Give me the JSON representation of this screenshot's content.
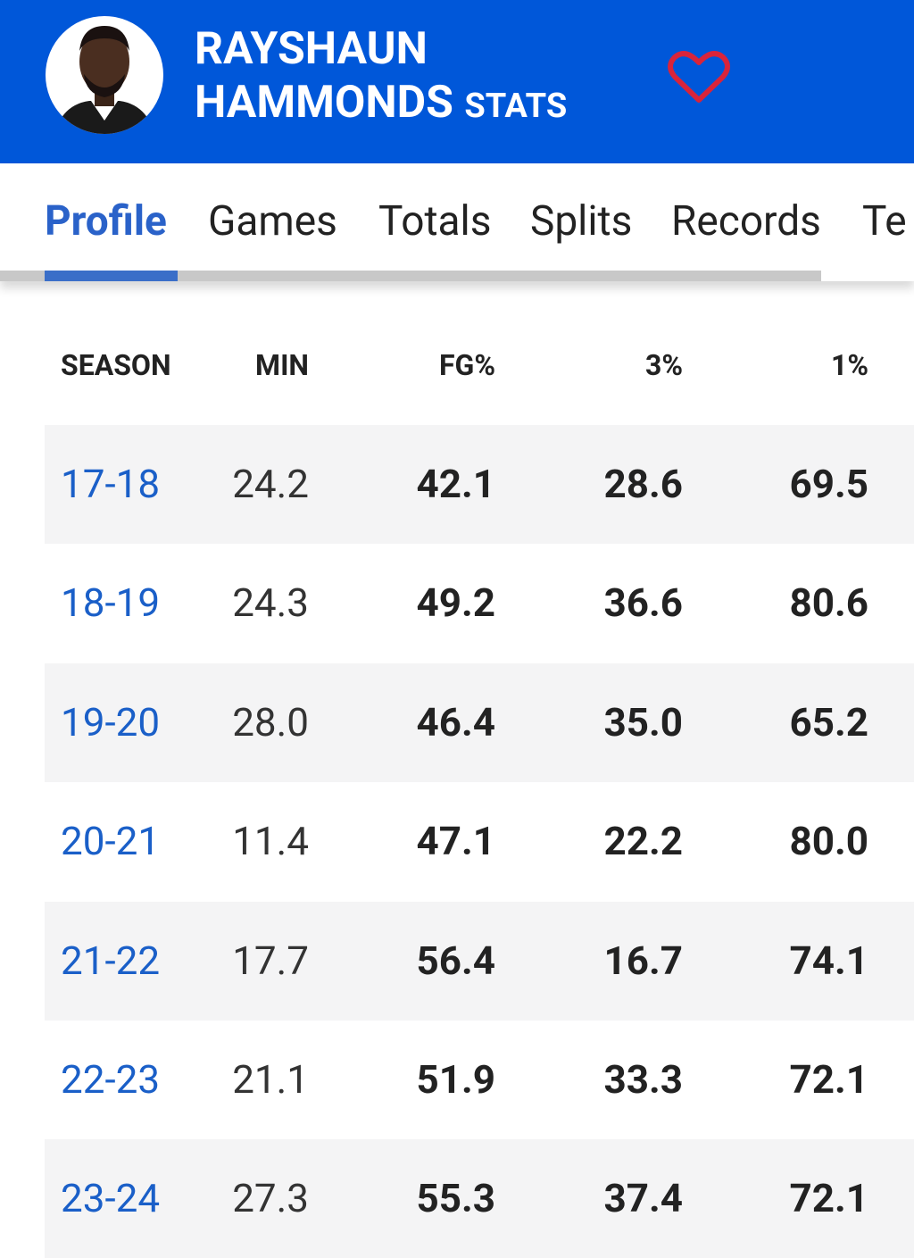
{
  "header": {
    "first_name": "RAYSHAUN",
    "last_name": "HAMMONDS",
    "suffix": "STATS"
  },
  "tabs": [
    "Profile",
    "Games",
    "Totals",
    "Splits",
    "Records",
    "Te"
  ],
  "table": {
    "columns": [
      "SEASON",
      "MIN",
      "FG%",
      "3%",
      "1%"
    ],
    "rows": [
      [
        "17-18",
        "24.2",
        "42.1",
        "28.6",
        "69.5"
      ],
      [
        "18-19",
        "24.3",
        "49.2",
        "36.6",
        "80.6"
      ],
      [
        "19-20",
        "28.0",
        "46.4",
        "35.0",
        "65.2"
      ],
      [
        "20-21",
        "11.4",
        "47.1",
        "22.2",
        "80.0"
      ],
      [
        "21-22",
        "17.7",
        "56.4",
        "16.7",
        "74.1"
      ],
      [
        "22-23",
        "21.1",
        "51.9",
        "33.3",
        "72.1"
      ],
      [
        "23-24",
        "27.3",
        "55.3",
        "37.4",
        "72.1"
      ]
    ]
  }
}
